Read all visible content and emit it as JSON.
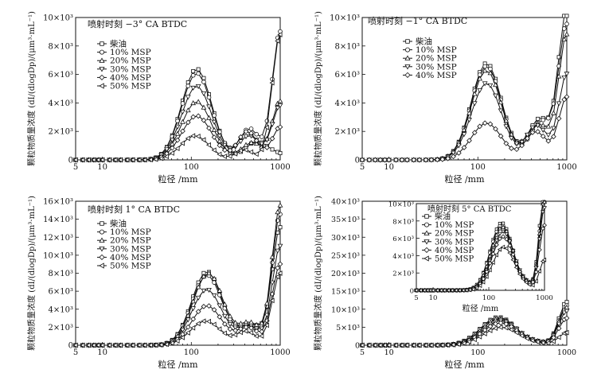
{
  "figure": {
    "x_label": "粒径 /mm",
    "y_label": "颗粒物质量浓度 (dI/(dlogDp)/(μm³·mL⁻¹)"
  },
  "legend_labels": [
    "柴油",
    "10% MSP",
    "20% MSP",
    "30% MSP",
    "40% MSP",
    "50% MSP"
  ],
  "chart_data": [
    {
      "type": "line",
      "title": "喷射时刻 −3° CA BTDC",
      "xlabel": "粒径 /mm",
      "ylabel": "颗粒物质量浓度 (dI/(dlogDp)/(μm³·mL⁻¹)",
      "xscale": "log",
      "xlim": [
        5,
        1000
      ],
      "ylim": [
        0,
        10000
      ],
      "xticks": [
        5,
        10,
        100,
        1000
      ],
      "yticks": [
        0,
        2000,
        4000,
        6000,
        8000,
        10000
      ],
      "ytick_labels": [
        "0",
        "2×10³",
        "4×10³",
        "6×10³",
        "8×10³",
        "10×10³"
      ],
      "legend_position": "top-left",
      "peaks": [
        {
          "name": "柴油",
          "p1": [
            115,
            6400,
            0.17
          ],
          "p2": [
            550,
            1300,
            0.13
          ],
          "tail": [
            1000,
            300
          ]
        },
        {
          "name": "10% MSP",
          "p1": [
            115,
            6100,
            0.17
          ],
          "p2": [
            450,
            2200,
            0.11
          ],
          "tail": [
            1000,
            9000
          ]
        },
        {
          "name": "20% MSP",
          "p1": [
            115,
            4100,
            0.17
          ],
          "p2": [
            480,
            1200,
            0.12
          ],
          "tail": [
            1000,
            4100
          ]
        },
        {
          "name": "30% MSP",
          "p1": [
            115,
            5200,
            0.17
          ],
          "p2": [
            450,
            1700,
            0.12
          ],
          "tail": [
            1000,
            3800
          ]
        },
        {
          "name": "40% MSP",
          "p1": [
            115,
            3100,
            0.17
          ],
          "p2": [
            430,
            2000,
            0.11
          ],
          "tail": [
            1000,
            2300
          ]
        },
        {
          "name": "50% MSP",
          "p1": [
            110,
            1700,
            0.16
          ],
          "p2": [
            400,
            700,
            0.1
          ],
          "tail": [
            1000,
            8800
          ]
        }
      ]
    },
    {
      "type": "line",
      "title": "喷射时刻 −1° CA BTDC",
      "xlabel": "粒径 /mm",
      "ylabel": "颗粒物质量浓度 (dI/(dlogDp)/(μm³·mL⁻¹)",
      "xscale": "log",
      "xlim": [
        5,
        1000
      ],
      "ylim": [
        0,
        10000
      ],
      "xticks": [
        5,
        10,
        100,
        1000
      ],
      "yticks": [
        0,
        2000,
        4000,
        6000,
        8000,
        10000
      ],
      "ytick_labels": [
        "0",
        "2×10³",
        "4×10³",
        "6×10³",
        "8×10³",
        "10×10³"
      ],
      "legend_position": "top-right",
      "peaks": [
        {
          "name": "柴油",
          "p1": [
            125,
            6800,
            0.17
          ],
          "p2": [
            500,
            2900,
            0.13
          ],
          "tail": [
            1000,
            10500
          ]
        },
        {
          "name": "10% MSP",
          "p1": [
            125,
            6600,
            0.17
          ],
          "p2": [
            520,
            2700,
            0.13
          ],
          "tail": [
            1000,
            9300
          ]
        },
        {
          "name": "20% MSP",
          "p1": [
            125,
            6300,
            0.17
          ],
          "p2": [
            480,
            2500,
            0.13
          ],
          "tail": [
            1000,
            8700
          ]
        },
        {
          "name": "30% MSP",
          "p1": [
            125,
            5400,
            0.17
          ],
          "p2": [
            460,
            2400,
            0.12
          ],
          "tail": [
            1000,
            6000
          ]
        },
        {
          "name": "40% MSP",
          "p1": [
            125,
            2600,
            0.17
          ],
          "p2": [
            450,
            2000,
            0.12
          ],
          "tail": [
            1000,
            4400
          ]
        }
      ]
    },
    {
      "type": "line",
      "title": "喷射时刻 1° CA BTDC",
      "xlabel": "粒径 /mm",
      "ylabel": "颗粒物质量浓度 (dI/(dlogDp)/(μm³·mL⁻¹)",
      "xscale": "log",
      "xlim": [
        5,
        1000
      ],
      "ylim": [
        0,
        16000
      ],
      "xticks": [
        5,
        10,
        100,
        1000
      ],
      "yticks": [
        0,
        2000,
        4000,
        6000,
        8000,
        10000,
        12000,
        14000,
        16000
      ],
      "ytick_labels": [
        "0",
        "2×10³",
        "4×10³",
        "6×10³",
        "8×10³",
        "10×10³",
        "12×10³",
        "14×10³",
        "16×10³"
      ],
      "legend_position": "top-left",
      "peaks": [
        {
          "name": "柴油",
          "p1": [
            150,
            8200,
            0.17
          ],
          "p2": [
            480,
            2200,
            0.13
          ],
          "tail": [
            1000,
            13000
          ]
        },
        {
          "name": "10% MSP",
          "p1": [
            150,
            7800,
            0.17
          ],
          "p2": [
            450,
            2000,
            0.13
          ],
          "tail": [
            1000,
            14500
          ]
        },
        {
          "name": "20% MSP",
          "p1": [
            155,
            8000,
            0.17
          ],
          "p2": [
            460,
            2400,
            0.12
          ],
          "tail": [
            1000,
            15500
          ]
        },
        {
          "name": "30% MSP",
          "p1": [
            150,
            6200,
            0.17
          ],
          "p2": [
            450,
            2100,
            0.12
          ],
          "tail": [
            1000,
            11000
          ]
        },
        {
          "name": "40% MSP",
          "p1": [
            150,
            4400,
            0.17
          ],
          "p2": [
            440,
            1900,
            0.12
          ],
          "tail": [
            1000,
            9000
          ]
        },
        {
          "name": "50% MSP",
          "p1": [
            145,
            2700,
            0.17
          ],
          "p2": [
            420,
            1500,
            0.11
          ],
          "tail": [
            1000,
            8000
          ]
        }
      ]
    },
    {
      "type": "line",
      "title": "喷射时刻 5° CA BTDC",
      "xlabel": "粒径 /mm",
      "ylabel": "颗粒物质量浓度 (dI/(dlogDp)/(μm³·mL⁻¹)",
      "xscale": "log",
      "xlim": [
        5,
        1000
      ],
      "ylim": [
        0,
        40000
      ],
      "xticks": [
        5,
        10,
        100,
        1000
      ],
      "yticks": [
        0,
        5000,
        10000,
        15000,
        20000,
        25000,
        30000,
        35000,
        40000
      ],
      "ytick_labels": [
        "0",
        "5×10³",
        "10×10³",
        "15×10³",
        "20×10³",
        "25×10³",
        "30×10³",
        "35×10³",
        "40×10³"
      ],
      "legend_position": "inset",
      "peaks": [
        {
          "name": "柴油",
          "p1": [
            170,
            7800,
            0.2
          ],
          "p2": [
            500,
            500,
            0.1
          ],
          "tail": [
            1000,
            12000
          ]
        },
        {
          "name": "10% MSP",
          "p1": [
            170,
            7500,
            0.2
          ],
          "p2": [
            500,
            500,
            0.1
          ],
          "tail": [
            1000,
            11000
          ]
        },
        {
          "name": "20% MSP",
          "p1": [
            175,
            7300,
            0.2
          ],
          "p2": [
            500,
            500,
            0.1
          ],
          "tail": [
            1000,
            10500
          ]
        },
        {
          "name": "30% MSP",
          "p1": [
            180,
            6800,
            0.2
          ],
          "p2": [
            500,
            400,
            0.1
          ],
          "tail": [
            1000,
            9500
          ]
        },
        {
          "name": "40% MSP",
          "p1": [
            180,
            6200,
            0.2
          ],
          "p2": [
            500,
            400,
            0.1
          ],
          "tail": [
            1000,
            7500
          ]
        },
        {
          "name": "50% MSP",
          "p1": [
            185,
            5000,
            0.2
          ],
          "p2": [
            500,
            300,
            0.1
          ],
          "tail": [
            1000,
            3500
          ]
        }
      ],
      "inset": {
        "title": "喷射时刻 5° CA BTDC",
        "xlabel": "粒径 /mm",
        "xscale": "log",
        "xlim": [
          5,
          1000
        ],
        "ylim": [
          0,
          10000
        ],
        "xticks": [
          5,
          10,
          100,
          1000
        ],
        "yticks": [
          0,
          2000,
          4000,
          6000,
          8000,
          10000
        ],
        "ytick_labels": [
          "0",
          "2×10³",
          "4×10³",
          "6×10³",
          "8×10³",
          "10×10³"
        ],
        "legend_position": "left"
      }
    }
  ]
}
